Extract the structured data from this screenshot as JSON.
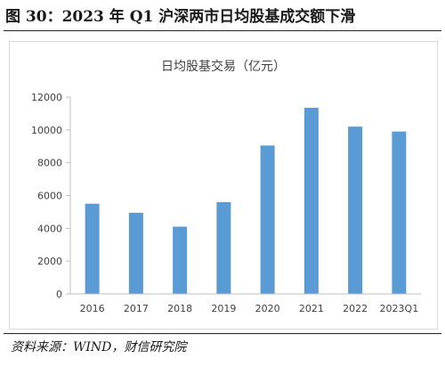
{
  "figure": {
    "title": "图 30：2023 年 Q1 沪深两市日均股基成交额下滑",
    "source": "资料来源：WIND，财信研究院"
  },
  "colors": {
    "bar": "#5B9BD5",
    "axis": "#bfbfbf",
    "text": "#404040"
  },
  "chart_data": {
    "type": "bar",
    "title": "日均股基交易（亿元）",
    "xlabel": "",
    "ylabel": "",
    "categories": [
      "2016",
      "2017",
      "2018",
      "2019",
      "2020",
      "2021",
      "2022",
      "2023Q1"
    ],
    "values": [
      5500,
      4950,
      4100,
      5600,
      9050,
      11350,
      10200,
      9900
    ],
    "ylim": [
      0,
      12000
    ],
    "yticks": [
      0,
      2000,
      4000,
      6000,
      8000,
      10000,
      12000
    ],
    "grid": false,
    "legend": "none"
  }
}
